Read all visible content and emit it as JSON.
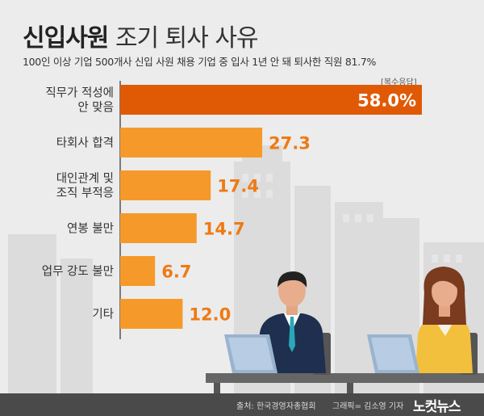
{
  "header": {
    "title_bold": "신입사원",
    "title_rest": " 조기 퇴사 사유",
    "subtitle": "100인 이상 기업 500개사 신입 사원 채용 기업 중 입사 1년 안 돼 퇴사한 직원 81.7%",
    "note": "[복수응답]"
  },
  "footer": {
    "source": "출처: 한국경영자총협회",
    "credit": "그래픽= 김소영 기자",
    "logo": "노컷뉴스"
  },
  "colors": {
    "highlight_bar": "#e05a06",
    "bar": "#f59a2a",
    "value_text": "#ee7a14",
    "axis": "#555555",
    "background": "#ececec"
  },
  "chart_data": {
    "type": "bar",
    "orientation": "horizontal",
    "categories": [
      [
        "직무가 적성에",
        "안 맞음"
      ],
      [
        "타회사 합격"
      ],
      [
        "대인관계 및",
        "조직 부적응"
      ],
      [
        "연봉 불만"
      ],
      [
        "업무 강도 불만"
      ],
      [
        "기타"
      ]
    ],
    "values": [
      58.0,
      27.3,
      17.4,
      14.7,
      6.7,
      12.0
    ],
    "value_labels": [
      "58.0%",
      "27.3",
      "17.4",
      "14.7",
      "6.7",
      "12.0"
    ],
    "highlight_index": 0,
    "xlim": [
      0,
      58.0
    ],
    "grid": false
  }
}
